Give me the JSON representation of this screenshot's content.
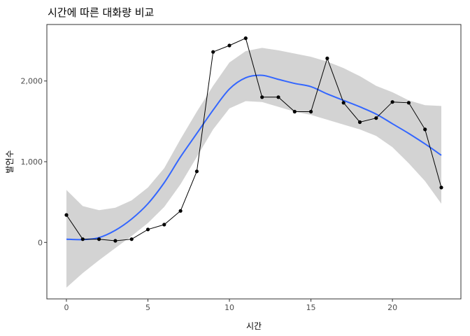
{
  "chart_data": {
    "type": "line",
    "title": "시간에 따른 대화량 비교",
    "xlabel": "시간",
    "ylabel": "발언수",
    "xlim": [
      -1.2,
      24.2
    ],
    "ylim": [
      -700,
      2700
    ],
    "x_ticks": [
      0,
      5,
      10,
      15,
      20
    ],
    "x_tick_labels": [
      "0",
      "5",
      "10",
      "15",
      "20"
    ],
    "y_ticks": [
      0,
      1000,
      2000
    ],
    "y_tick_labels": [
      "0",
      "1,000",
      "2,000"
    ],
    "grid": false,
    "border": true,
    "series": [
      {
        "kind": "points+line",
        "color": "#000000",
        "x": [
          0,
          1,
          2,
          3,
          4,
          5,
          6,
          7,
          8,
          9,
          10,
          11,
          12,
          13,
          14,
          15,
          16,
          17,
          18,
          19,
          20,
          21,
          22,
          23
        ],
        "values": [
          340,
          40,
          40,
          20,
          40,
          160,
          220,
          390,
          880,
          2360,
          2440,
          2530,
          1800,
          1800,
          1620,
          1620,
          2280,
          1730,
          1490,
          1540,
          1740,
          1730,
          1400,
          680
        ]
      },
      {
        "kind": "smooth",
        "color": "#3366ff",
        "band_color": "#d3d3d3",
        "x": [
          0,
          1,
          2,
          3,
          4,
          5,
          6,
          7,
          8,
          9,
          10,
          11,
          12,
          13,
          14,
          15,
          16,
          17,
          18,
          19,
          20,
          21,
          22,
          23
        ],
        "values": [
          40,
          35,
          60,
          150,
          290,
          480,
          740,
          1060,
          1350,
          1640,
          1900,
          2040,
          2070,
          2020,
          1970,
          1930,
          1840,
          1760,
          1680,
          1590,
          1470,
          1350,
          1220,
          1080
        ],
        "band_lower": [
          -560,
          -380,
          -220,
          -70,
          80,
          240,
          440,
          720,
          1060,
          1400,
          1660,
          1750,
          1740,
          1680,
          1620,
          1580,
          1520,
          1460,
          1400,
          1320,
          1180,
          980,
          760,
          480
        ],
        "band_upper": [
          650,
          450,
          400,
          430,
          520,
          680,
          920,
          1280,
          1620,
          1940,
          2230,
          2370,
          2410,
          2380,
          2340,
          2300,
          2240,
          2160,
          2060,
          1940,
          1860,
          1760,
          1700,
          1690
        ]
      }
    ]
  }
}
